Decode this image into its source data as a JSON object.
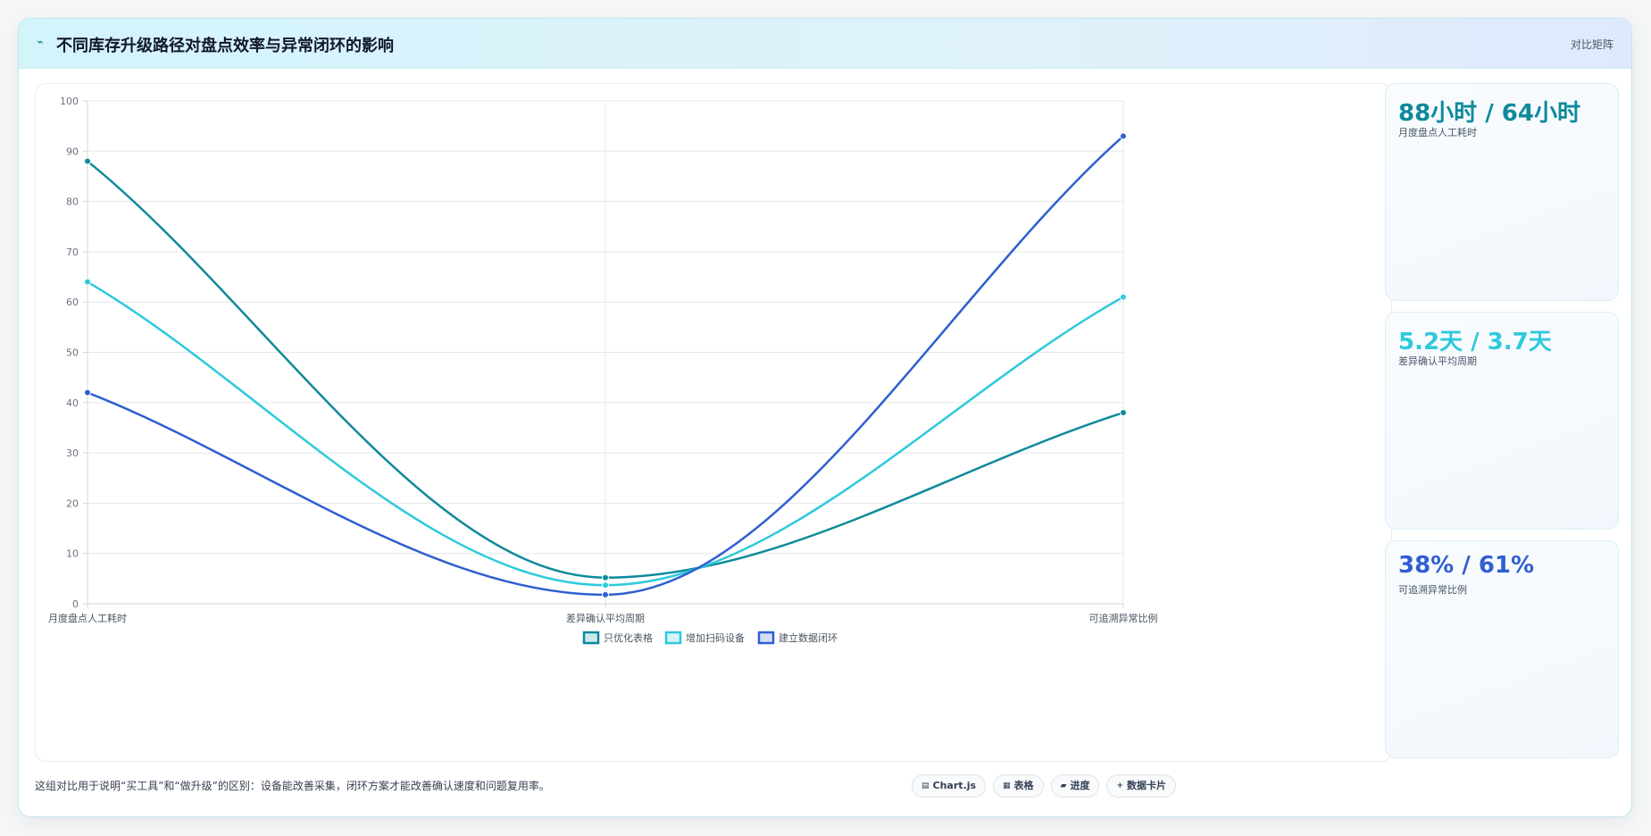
{
  "header": {
    "title": "不同库存升级路径对盘点效率与异常闭环的影响",
    "right_label": "对比矩阵",
    "icon": "trend-line-icon"
  },
  "colors": {
    "series1": "#0e8a9a",
    "series2": "#2ec9dc",
    "series3": "#2f5fd1",
    "grid": "#e5e7eb"
  },
  "chart_data": {
    "type": "line",
    "categories": [
      "月度盘点人工耗时",
      "差异确认平均周期",
      "可追溯异常比例"
    ],
    "ylim": [
      0,
      100
    ],
    "yticks": [
      0,
      10,
      20,
      30,
      40,
      50,
      60,
      70,
      80,
      90,
      100
    ],
    "grid": true,
    "legend": "bottom-center",
    "curve": "smooth",
    "series": [
      {
        "name": "只优化表格",
        "values": [
          88,
          5.2,
          38
        ]
      },
      {
        "name": "增加扫码设备",
        "values": [
          64,
          3.7,
          61
        ]
      },
      {
        "name": "建立数据闭环",
        "values": [
          42,
          1.8,
          93
        ]
      }
    ]
  },
  "stats": [
    {
      "value": "88小时 / 64小时",
      "label": "月度盘点人工耗时",
      "color": "#0e8a9a"
    },
    {
      "value": "5.2天 / 3.7天",
      "label": "差异确认平均周期",
      "color": "#2ec9dc"
    },
    {
      "value": "38% / 61%",
      "label": "可追溯异常比例",
      "color": "#2f5fd1"
    }
  ],
  "footer": {
    "note": "这组对比用于说明“买工具”和“做升级”的区别：设备能改善采集，闭环方案才能改善确认速度和问题复用率。",
    "chips": [
      {
        "icon": "chart-icon",
        "glyph": "▤",
        "label": "Chart.js"
      },
      {
        "icon": "table-icon",
        "glyph": "▦",
        "label": "表格"
      },
      {
        "icon": "progress-icon",
        "glyph": "▰",
        "label": "进度"
      },
      {
        "icon": "plus-icon",
        "glyph": "+",
        "label": "数据卡片"
      }
    ]
  }
}
